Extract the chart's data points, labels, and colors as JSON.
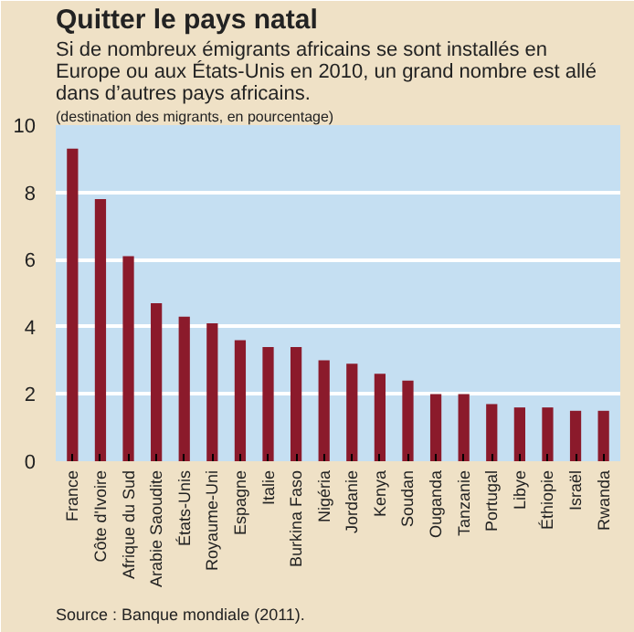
{
  "chart_data": {
    "type": "bar",
    "title": "Quitter le pays natal",
    "subtitle": "Si de nombreux émigrants africains se sont installés en Europe ou aux États-Unis en 2010, un grand nombre est allé dans d’autres pays africains.",
    "ylabel": "(destination des migrants, en pourcentage)",
    "categories": [
      "France",
      "Côte d'Ivoire",
      "Afrique du Sud",
      "Arabie Saoudite",
      "États-Unis",
      "Royaume-Uni",
      "Espagne",
      "Italie",
      "Burkina Faso",
      "Nigéria",
      "Jordanie",
      "Kenya",
      "Soudan",
      "Ouganda",
      "Tanzanie",
      "Portugal",
      "Libye",
      "Éthiopie",
      "Israël",
      "Rwanda"
    ],
    "values": [
      9.3,
      7.8,
      6.1,
      4.7,
      4.3,
      4.1,
      3.6,
      3.4,
      3.4,
      3.0,
      2.9,
      2.6,
      2.4,
      2.0,
      2.0,
      1.7,
      1.6,
      1.6,
      1.5,
      1.5
    ],
    "color": "#8b1a2b",
    "ylim": [
      0,
      10
    ],
    "yticks": [
      0,
      2,
      4,
      6,
      8,
      10
    ],
    "grid": "y",
    "annotations": [
      "Source : Banque mondiale (2011)."
    ]
  }
}
